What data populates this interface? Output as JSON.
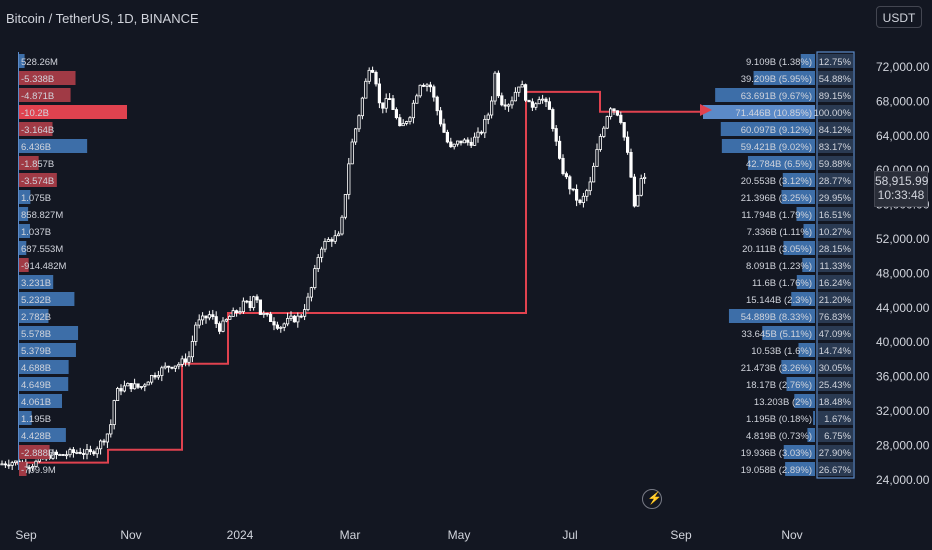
{
  "header": {
    "title": "Bitcoin / TetherUS, 1D, BINANCE",
    "currency": "USDT"
  },
  "current": {
    "price": "58,915.99",
    "countdown": "10:33:48"
  },
  "colors": {
    "background": "#131722",
    "up": "#3d6ea8",
    "down": "#a03a45",
    "down_hot": "#e0424f",
    "poc": "#e0424f",
    "candle": "#ffffff",
    "axis_text": "#d1d4dc"
  },
  "icons": {
    "bolt": "lightning-icon"
  },
  "chart_data": {
    "type": "candlestick",
    "x_ticks": [
      "Sep",
      "Nov",
      "2024",
      "Mar",
      "May",
      "Jul",
      "Sep",
      "Nov"
    ],
    "y_ticks": [
      "72,000.00",
      "68,000.00",
      "64,000.00",
      "60,000.00",
      "56,000.00",
      "52,000.00",
      "48,000.00",
      "44,000.00",
      "40,000.00",
      "36,000.00",
      "32,000.00",
      "28,000.00",
      "24,000.00"
    ],
    "ylim": [
      23000,
      75000
    ],
    "close_path": [
      [
        0,
        25800
      ],
      [
        10,
        26100
      ],
      [
        20,
        26000
      ],
      [
        30,
        25700
      ],
      [
        40,
        26200
      ],
      [
        50,
        26900
      ],
      [
        60,
        26800
      ],
      [
        70,
        27100
      ],
      [
        80,
        27300
      ],
      [
        90,
        27000
      ],
      [
        100,
        28200
      ],
      [
        110,
        29800
      ],
      [
        115,
        33900
      ],
      [
        120,
        34600
      ],
      [
        130,
        35000
      ],
      [
        140,
        34700
      ],
      [
        150,
        35900
      ],
      [
        160,
        36700
      ],
      [
        170,
        37300
      ],
      [
        180,
        37500
      ],
      [
        190,
        38400
      ],
      [
        195,
        42000
      ],
      [
        200,
        42400
      ],
      [
        210,
        43200
      ],
      [
        220,
        41600
      ],
      [
        230,
        43000
      ],
      [
        240,
        43800
      ],
      [
        245,
        44700
      ],
      [
        250,
        44000
      ],
      [
        255,
        46300
      ],
      [
        260,
        43400
      ],
      [
        270,
        42700
      ],
      [
        280,
        41800
      ],
      [
        290,
        42600
      ],
      [
        300,
        42900
      ],
      [
        310,
        45500
      ],
      [
        320,
        51000
      ],
      [
        330,
        52000
      ],
      [
        340,
        52300
      ],
      [
        345,
        57000
      ],
      [
        350,
        62100
      ],
      [
        360,
        67000
      ],
      [
        370,
        72500
      ],
      [
        375,
        71200
      ],
      [
        380,
        67200
      ],
      [
        390,
        68300
      ],
      [
        400,
        64700
      ],
      [
        410,
        66500
      ],
      [
        420,
        70200
      ],
      [
        430,
        69900
      ],
      [
        440,
        65800
      ],
      [
        450,
        62400
      ],
      [
        460,
        63400
      ],
      [
        470,
        63200
      ],
      [
        480,
        64200
      ],
      [
        490,
        67000
      ],
      [
        495,
        71200
      ],
      [
        500,
        68000
      ],
      [
        510,
        67800
      ],
      [
        520,
        70300
      ],
      [
        530,
        67200
      ],
      [
        540,
        68700
      ],
      [
        550,
        66800
      ],
      [
        555,
        63900
      ],
      [
        560,
        60700
      ],
      [
        570,
        58000
      ],
      [
        580,
        56000
      ],
      [
        590,
        58300
      ],
      [
        600,
        63800
      ],
      [
        610,
        67500
      ],
      [
        620,
        66400
      ],
      [
        630,
        60300
      ],
      [
        635,
        54800
      ],
      [
        640,
        58900
      ],
      [
        645,
        58915
      ]
    ],
    "poc_line": [
      [
        15,
        26000
      ],
      [
        108,
        26000
      ],
      [
        108,
        27500
      ],
      [
        182,
        27500
      ],
      [
        182,
        37500
      ],
      [
        228,
        37500
      ],
      [
        228,
        43400
      ],
      [
        526,
        43400
      ],
      [
        526,
        69100
      ],
      [
        600,
        69100
      ],
      [
        600,
        66800
      ],
      [
        700,
        66800
      ]
    ],
    "right_profile": {
      "rows": [
        {
          "label": "9.109B (1.38%)",
          "pct": "12.75%",
          "y": 72500,
          "w": 0.1275
        },
        {
          "label": "39.209B (5.95%)",
          "pct": "54.88%",
          "y": 70500,
          "w": 0.5488
        },
        {
          "label": "63.691B (9.67%)",
          "pct": "89.15%",
          "y": 68500,
          "w": 0.8915
        },
        {
          "label": "71.446B (10.85%)",
          "pct": "100.00%",
          "y": 66500,
          "w": 1.0
        },
        {
          "label": "60.097B (9.12%)",
          "pct": "84.12%",
          "y": 64500,
          "w": 0.8412
        },
        {
          "label": "59.421B (9.02%)",
          "pct": "83.17%",
          "y": 62500,
          "w": 0.8317
        },
        {
          "label": "42.784B (6.5%)",
          "pct": "59.88%",
          "y": 60500,
          "w": 0.5988
        },
        {
          "label": "20.553B (3.12%)",
          "pct": "28.77%",
          "y": 58500,
          "w": 0.2877
        },
        {
          "label": "21.396B (3.25%)",
          "pct": "29.95%",
          "y": 56500,
          "w": 0.2995
        },
        {
          "label": "11.794B (1.79%)",
          "pct": "16.51%",
          "y": 54500,
          "w": 0.1651
        },
        {
          "label": "7.336B (1.11%)",
          "pct": "10.27%",
          "y": 52500,
          "w": 0.1027
        },
        {
          "label": "20.111B (3.05%)",
          "pct": "28.15%",
          "y": 50500,
          "w": 0.2815
        },
        {
          "label": "8.091B (1.23%)",
          "pct": "11.33%",
          "y": 48500,
          "w": 0.1133
        },
        {
          "label": "11.6B (1.76%)",
          "pct": "16.24%",
          "y": 46500,
          "w": 0.1624
        },
        {
          "label": "15.144B (2.3%)",
          "pct": "21.20%",
          "y": 44500,
          "w": 0.212
        },
        {
          "label": "54.889B (8.33%)",
          "pct": "76.83%",
          "y": 42500,
          "w": 0.7683
        },
        {
          "label": "33.645B (5.11%)",
          "pct": "47.09%",
          "y": 40500,
          "w": 0.4709
        },
        {
          "label": "10.53B (1.6%)",
          "pct": "14.74%",
          "y": 38500,
          "w": 0.1474
        },
        {
          "label": "21.473B (3.26%)",
          "pct": "30.05%",
          "y": 36500,
          "w": 0.3005
        },
        {
          "label": "18.17B (2.76%)",
          "pct": "25.43%",
          "y": 34500,
          "w": 0.2543
        },
        {
          "label": "13.203B (2%)",
          "pct": "18.48%",
          "y": 32500,
          "w": 0.1848
        },
        {
          "label": "1.195B (0.18%)",
          "pct": "1.67%",
          "y": 30500,
          "w": 0.0167
        },
        {
          "label": "4.819B (0.73%)",
          "pct": "6.75%",
          "y": 28500,
          "w": 0.0675
        },
        {
          "label": "19.936B (3.03%)",
          "pct": "27.90%",
          "y": 26500,
          "w": 0.279
        },
        {
          "label": "19.058B (2.89%)",
          "pct": "26.67%",
          "y": 24500,
          "w": 0.2667
        }
      ]
    },
    "left_delta": {
      "rows": [
        {
          "label": "528.26M",
          "value": 0.528
        },
        {
          "label": "-5.338B",
          "value": -5.338
        },
        {
          "label": "-4.871B",
          "value": -4.871
        },
        {
          "label": "-10.2B",
          "value": -10.2
        },
        {
          "label": "-3.164B",
          "value": -3.164
        },
        {
          "label": "6.436B",
          "value": 6.436
        },
        {
          "label": "-1.857B",
          "value": -1.857
        },
        {
          "label": "-3.574B",
          "value": -3.574
        },
        {
          "label": "1.075B",
          "value": 1.075
        },
        {
          "label": "858.827M",
          "value": 0.859
        },
        {
          "label": "1.037B",
          "value": 1.037
        },
        {
          "label": "687.553M",
          "value": 0.688
        },
        {
          "label": "-914.482M",
          "value": -0.914
        },
        {
          "label": "3.231B",
          "value": 3.231
        },
        {
          "label": "5.232B",
          "value": 5.232
        },
        {
          "label": "2.782B",
          "value": 2.782
        },
        {
          "label": "5.578B",
          "value": 5.578
        },
        {
          "label": "5.379B",
          "value": 5.379
        },
        {
          "label": "4.688B",
          "value": 4.688
        },
        {
          "label": "4.649B",
          "value": 4.649
        },
        {
          "label": "4.061B",
          "value": 4.061
        },
        {
          "label": "1.195B",
          "value": 1.195
        },
        {
          "label": "4.428B",
          "value": 4.428
        },
        {
          "label": "-2.888B",
          "value": -2.888
        },
        {
          "label": "-709.9M",
          "value": -0.71
        }
      ]
    }
  }
}
